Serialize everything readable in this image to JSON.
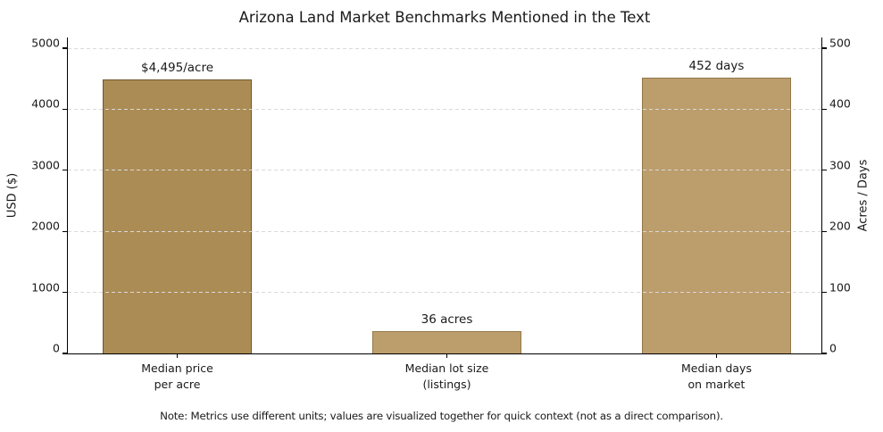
{
  "title": "Arizona Land Market Benchmarks Mentioned in the Text",
  "note": "Note: Metrics use different units; values are visualized together for quick context (not as a direct comparison).",
  "colors": {
    "bar_primary_fill": "#ab8c55",
    "bar_primary_edge": "#6f5a2b",
    "bar_secondary_fill": "#bc9d6c",
    "bar_secondary_edge": "#93784a",
    "grid": "#d9d9d9",
    "axis": "#000000",
    "text": "#1a1a1a"
  },
  "chart_data": {
    "type": "bar",
    "title": "Arizona Land Market Benchmarks Mentioned in the Text",
    "categories": [
      [
        "Median price",
        "per acre"
      ],
      [
        "Median lot size",
        "(listings)"
      ],
      [
        "Median days",
        "on market"
      ]
    ],
    "values": [
      4495,
      36,
      452
    ],
    "value_labels": [
      "$4,495/acre",
      "36 acres",
      "452 days"
    ],
    "bar_axis": [
      "left",
      "right",
      "right"
    ],
    "bar_fills": [
      "#ab8c55",
      "#bc9d6c",
      "#bc9d6c"
    ],
    "bar_edges": [
      "#6f5a2b",
      "#93784a",
      "#93784a"
    ],
    "left_axis": {
      "label": "USD ($)",
      "ticks": [
        0,
        1000,
        2000,
        3000,
        4000,
        5000
      ],
      "max_tick": 5000
    },
    "right_axis": {
      "label": "Acres / Days",
      "ticks": [
        0,
        100,
        200,
        300,
        400,
        500
      ],
      "max_tick": 500
    },
    "grid": "dashed horizontal, drawn over bars",
    "legend": "none"
  }
}
